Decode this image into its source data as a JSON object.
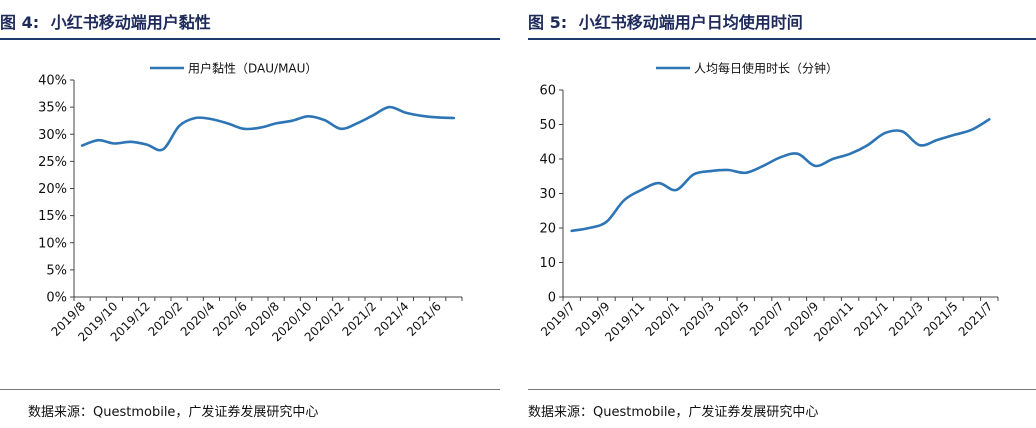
{
  "chart_data": [
    {
      "type": "line",
      "figure_label": "图 4:",
      "title": "小红书移动端用户黏性",
      "legend": "用户黏性（DAU/MAU）",
      "legend_position": "top-center",
      "ylim": [
        0,
        40
      ],
      "yticks": [
        "0%",
        "5%",
        "10%",
        "15%",
        "20%",
        "25%",
        "30%",
        "35%",
        "40%"
      ],
      "xticks": [
        "2019/8",
        "2019/10",
        "2019/12",
        "2020/2",
        "2020/4",
        "2020/6",
        "2020/8",
        "2020/10",
        "2020/12",
        "2021/2",
        "2021/4",
        "2021/6"
      ],
      "x": [
        "2019/8",
        "2019/9",
        "2019/10",
        "2019/11",
        "2019/12",
        "2020/1",
        "2020/2",
        "2020/3",
        "2020/4",
        "2020/5",
        "2020/6",
        "2020/7",
        "2020/8",
        "2020/9",
        "2020/10",
        "2020/11",
        "2020/12",
        "2021/1",
        "2021/2",
        "2021/3",
        "2021/4",
        "2021/5",
        "2021/6",
        "2021/7"
      ],
      "values": [
        27.9,
        28.9,
        28.3,
        28.6,
        28.1,
        27.2,
        31.5,
        33.0,
        32.8,
        32.0,
        31.0,
        31.2,
        32.0,
        32.5,
        33.3,
        32.6,
        31.0,
        32.0,
        33.5,
        35.0,
        34.0,
        33.4,
        33.1,
        33.0
      ],
      "series_color": "#2e75b6",
      "grid": false
    },
    {
      "type": "line",
      "figure_label": "图 5:",
      "title": "小红书移动端用户日均使用时间",
      "legend": "人均每日使用时长（分钟）",
      "legend_position": "top-center",
      "ylim": [
        0,
        60
      ],
      "yticks": [
        "0",
        "10",
        "20",
        "30",
        "40",
        "50",
        "60"
      ],
      "xticks": [
        "2019/7",
        "2019/9",
        "2019/11",
        "2020/1",
        "2020/3",
        "2020/5",
        "2020/7",
        "2020/9",
        "2020/11",
        "2021/1",
        "2021/3",
        "2021/5",
        "2021/7"
      ],
      "x": [
        "2019/7",
        "2019/8",
        "2019/9",
        "2019/10",
        "2019/11",
        "2019/12",
        "2020/1",
        "2020/2",
        "2020/3",
        "2020/4",
        "2020/5",
        "2020/6",
        "2020/7",
        "2020/8",
        "2020/9",
        "2020/10",
        "2020/11",
        "2020/12",
        "2021/1",
        "2021/2",
        "2021/3",
        "2021/4",
        "2021/5",
        "2021/6",
        "2021/7"
      ],
      "values": [
        19.2,
        20.0,
        21.8,
        28.0,
        31.0,
        33.0,
        31.0,
        35.5,
        36.5,
        36.8,
        36.0,
        38.0,
        40.5,
        41.5,
        38.0,
        40.0,
        41.5,
        44.0,
        47.5,
        48.0,
        44.0,
        45.5,
        47.0,
        48.5,
        51.5
      ],
      "series_color": "#2e75b6",
      "grid": false
    }
  ],
  "footer": {
    "source_left": "数据来源：Questmobile，广发证券发展研究中心",
    "source_right": "数据来源：Questmobile，广发证券发展研究中心"
  }
}
